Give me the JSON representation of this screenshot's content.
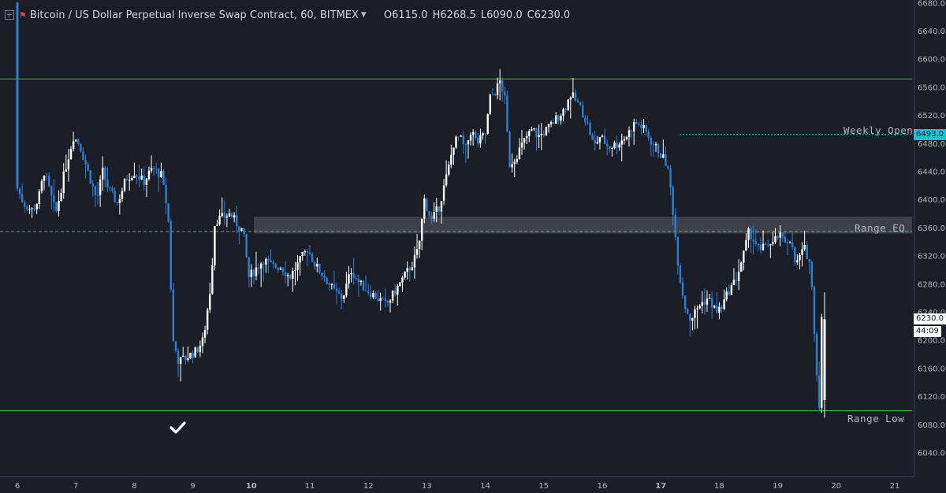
{
  "header": {
    "title": "Bitcoin / US Dollar Perpetual Inverse Swap Contract, 60, BITMEX",
    "o_label": "O",
    "o_value": "6115.0",
    "h_label": "H",
    "h_value": "6268.5",
    "l_label": "L",
    "l_value": "6090.0",
    "c_label": "C",
    "c_value": "6230.0"
  },
  "price_tags": {
    "current": "6230.0",
    "countdown": "44:09",
    "weekly_open": "6493.0"
  },
  "levels": {
    "range_high": 6572,
    "weekly_open": 6493,
    "range_eq_line": 6355,
    "range_eq_zone": [
      6352,
      6376
    ],
    "range_low": 6100
  },
  "level_labels": {
    "weekly_open": "Weekly Open",
    "range_eq": "Range EQ",
    "range_low": "Range Low"
  },
  "icons": {
    "checkmark": "check-icon",
    "flag": "flag-icon",
    "layout": "plus-square-icon"
  },
  "colors": {
    "background": "#1b1e27",
    "up": "#ffffff",
    "down": "#2b7fd4",
    "level_line": "#3fb950",
    "weekly_open": "#17c3d8",
    "eq_zone": "#5a5d66"
  },
  "chart_data": {
    "type": "candlestick",
    "x_ticks": [
      "6",
      "7",
      "8",
      "9",
      "10",
      "11",
      "12",
      "13",
      "14",
      "15",
      "16",
      "17",
      "18",
      "19",
      "20",
      "21"
    ],
    "bold_ticks": [
      "10",
      "17"
    ],
    "y_ticks": [
      "6040.0",
      "6080.0",
      "6120.0",
      "6160.0",
      "6200.0",
      "6240.0",
      "6280.0",
      "6320.0",
      "6360.0",
      "6400.0",
      "6440.0",
      "6480.0",
      "6520.0",
      "6560.0",
      "6600.0",
      "6640.0",
      "6680.0"
    ],
    "ylim": [
      6020,
      6688
    ],
    "xlim": [
      6,
      21.3
    ],
    "anchors": [
      [
        6.0,
        6680
      ],
      [
        6.02,
        6420
      ],
      [
        6.15,
        6395
      ],
      [
        6.3,
        6385
      ],
      [
        6.4,
        6400
      ],
      [
        6.5,
        6440
      ],
      [
        6.6,
        6410
      ],
      [
        6.7,
        6380
      ],
      [
        6.85,
        6440
      ],
      [
        7.0,
        6490
      ],
      [
        7.1,
        6480
      ],
      [
        7.25,
        6440
      ],
      [
        7.4,
        6400
      ],
      [
        7.5,
        6440
      ],
      [
        7.6,
        6415
      ],
      [
        7.75,
        6395
      ],
      [
        7.9,
        6430
      ],
      [
        8.05,
        6440
      ],
      [
        8.2,
        6425
      ],
      [
        8.35,
        6445
      ],
      [
        8.5,
        6435
      ],
      [
        8.62,
        6380
      ],
      [
        8.7,
        6200
      ],
      [
        8.8,
        6170
      ],
      [
        8.92,
        6175
      ],
      [
        9.1,
        6185
      ],
      [
        9.22,
        6200
      ],
      [
        9.35,
        6280
      ],
      [
        9.42,
        6370
      ],
      [
        9.55,
        6375
      ],
      [
        9.68,
        6380
      ],
      [
        9.8,
        6365
      ],
      [
        9.9,
        6355
      ],
      [
        10.0,
        6290
      ],
      [
        10.1,
        6300
      ],
      [
        10.25,
        6315
      ],
      [
        10.4,
        6305
      ],
      [
        10.55,
        6305
      ],
      [
        10.7,
        6290
      ],
      [
        10.85,
        6310
      ],
      [
        11.0,
        6330
      ],
      [
        11.15,
        6305
      ],
      [
        11.3,
        6290
      ],
      [
        11.45,
        6270
      ],
      [
        11.6,
        6260
      ],
      [
        11.75,
        6300
      ],
      [
        11.9,
        6280
      ],
      [
        12.05,
        6270
      ],
      [
        12.2,
        6260
      ],
      [
        12.35,
        6250
      ],
      [
        12.5,
        6270
      ],
      [
        12.65,
        6290
      ],
      [
        12.8,
        6310
      ],
      [
        12.9,
        6330
      ],
      [
        13.0,
        6400
      ],
      [
        13.12,
        6370
      ],
      [
        13.25,
        6390
      ],
      [
        13.4,
        6440
      ],
      [
        13.5,
        6480
      ],
      [
        13.6,
        6490
      ],
      [
        13.7,
        6470
      ],
      [
        13.8,
        6500
      ],
      [
        13.9,
        6480
      ],
      [
        14.05,
        6495
      ],
      [
        14.12,
        6545
      ],
      [
        14.22,
        6555
      ],
      [
        14.3,
        6570
      ],
      [
        14.38,
        6540
      ],
      [
        14.45,
        6450
      ],
      [
        14.55,
        6460
      ],
      [
        14.65,
        6475
      ],
      [
        14.75,
        6490
      ],
      [
        14.85,
        6500
      ],
      [
        14.95,
        6490
      ],
      [
        15.1,
        6500
      ],
      [
        15.25,
        6515
      ],
      [
        15.4,
        6530
      ],
      [
        15.5,
        6550
      ],
      [
        15.6,
        6540
      ],
      [
        15.7,
        6525
      ],
      [
        15.8,
        6505
      ],
      [
        15.9,
        6475
      ],
      [
        16.0,
        6490
      ],
      [
        16.15,
        6475
      ],
      [
        16.3,
        6480
      ],
      [
        16.45,
        6490
      ],
      [
        16.6,
        6510
      ],
      [
        16.7,
        6505
      ],
      [
        16.8,
        6495
      ],
      [
        16.9,
        6480
      ],
      [
        17.0,
        6470
      ],
      [
        17.15,
        6450
      ],
      [
        17.22,
        6410
      ],
      [
        17.3,
        6340
      ],
      [
        17.35,
        6300
      ],
      [
        17.45,
        6250
      ],
      [
        17.55,
        6230
      ],
      [
        17.7,
        6250
      ],
      [
        17.85,
        6260
      ],
      [
        18.0,
        6240
      ],
      [
        18.1,
        6250
      ],
      [
        18.2,
        6270
      ],
      [
        18.32,
        6285
      ],
      [
        18.45,
        6320
      ],
      [
        18.55,
        6355
      ],
      [
        18.65,
        6340
      ],
      [
        18.75,
        6325
      ],
      [
        18.85,
        6340
      ],
      [
        18.95,
        6335
      ],
      [
        19.05,
        6350
      ],
      [
        19.15,
        6340
      ],
      [
        19.25,
        6345
      ],
      [
        19.35,
        6305
      ],
      [
        19.42,
        6320
      ],
      [
        19.5,
        6330
      ],
      [
        19.58,
        6315
      ],
      [
        19.64,
        6260
      ],
      [
        19.7,
        6160
      ],
      [
        19.75,
        6110
      ],
      [
        19.78,
        6230
      ]
    ]
  }
}
